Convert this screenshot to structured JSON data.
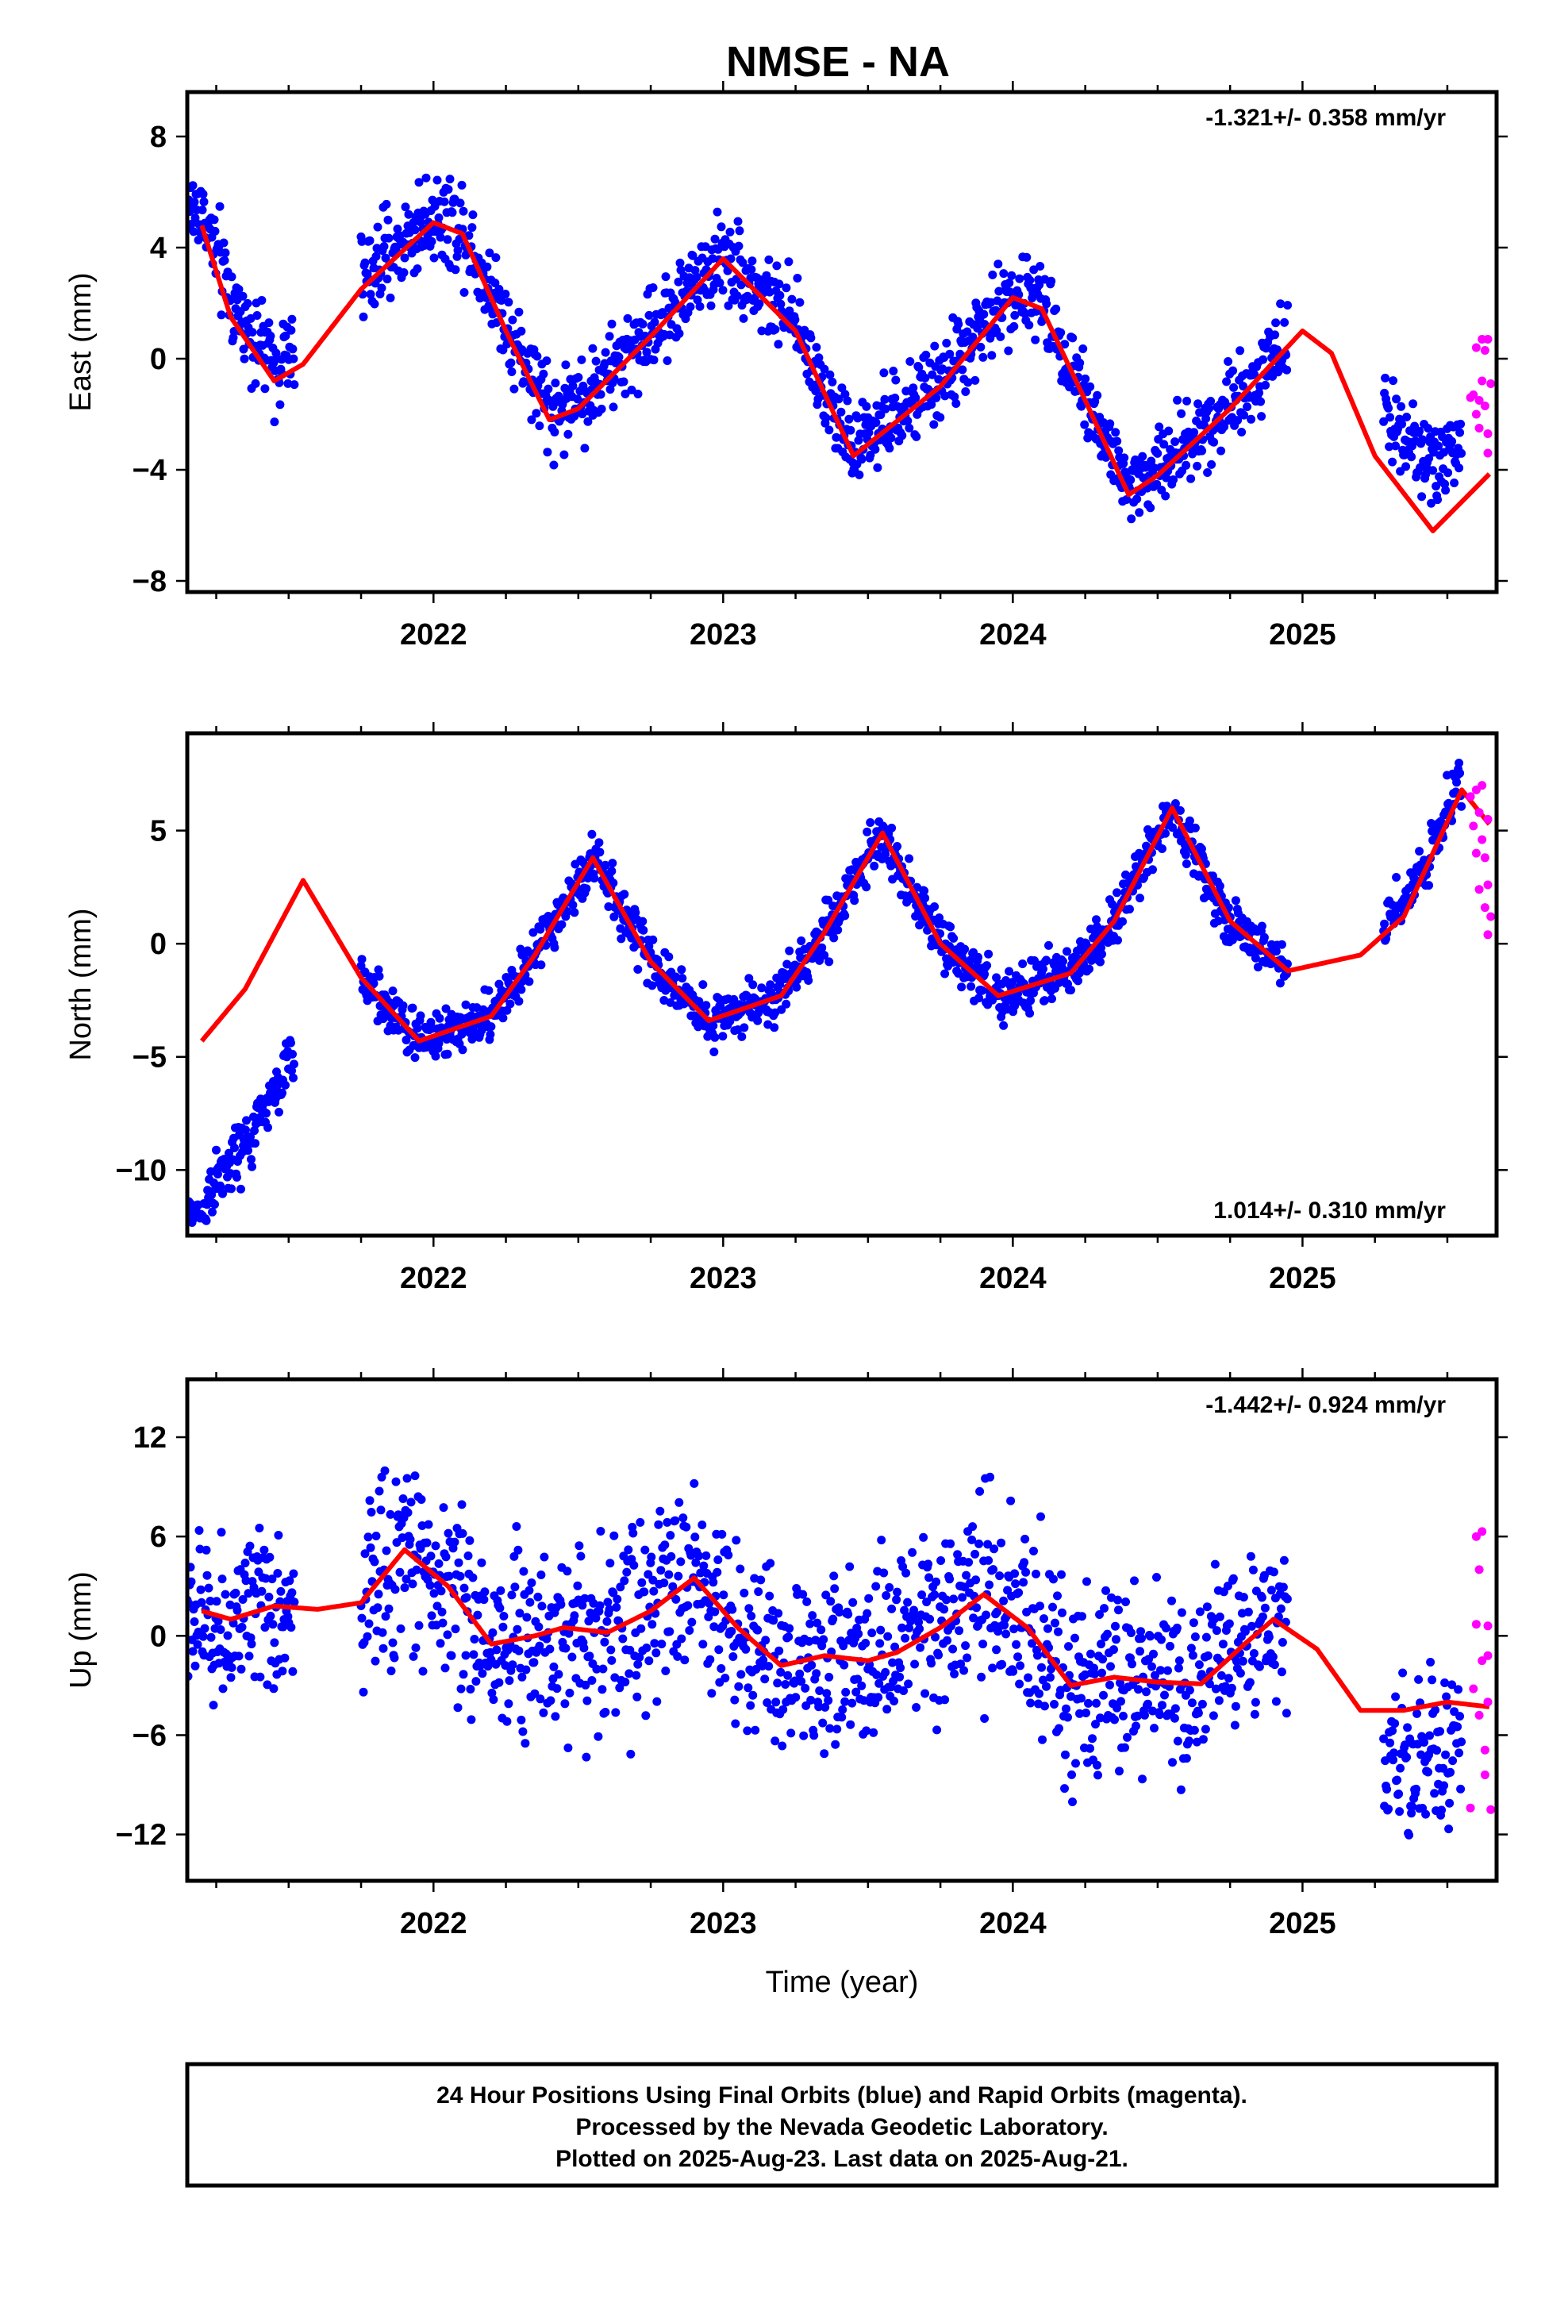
{
  "title": "NMSE - NA",
  "caption": {
    "line1": "24 Hour Positions Using Final Orbits (blue) and Rapid Orbits (magenta).",
    "line2": "Processed by the Nevada Geodetic Laboratory.",
    "line3": "Plotted on 2025-Aug-23. Last data on 2025-Aug-21."
  },
  "colors": {
    "final_orbits": "#0000ff",
    "rapid_orbits": "#ff00ff",
    "model_fit": "#ff0000",
    "axis": "#000000"
  },
  "chart_data": [
    {
      "type": "scatter",
      "name": "east",
      "ylabel": "East (mm)",
      "xlabel": "",
      "rate_label": "-1.321+/- 0.358 mm/yr",
      "rate_position": "top-right",
      "xlim": [
        2021.15,
        2025.67
      ],
      "ylim": [
        -8.4,
        9.6
      ],
      "xticks": [
        2022,
        2023,
        2024,
        2025
      ],
      "xtick_labels": [
        "2022",
        "2023",
        "2024",
        "2025"
      ],
      "yticks": [
        -8,
        -4,
        0,
        4,
        8
      ],
      "ytick_labels": [
        "−8",
        "−4",
        "0",
        "4",
        "8"
      ],
      "grid": false,
      "model": {
        "x": [
          2021.2,
          2021.3,
          2021.45,
          2021.55,
          2021.75,
          2022.0,
          2022.1,
          2022.25,
          2022.4,
          2022.5,
          2022.75,
          2023.0,
          2023.25,
          2023.45,
          2023.75,
          2024.0,
          2024.1,
          2024.25,
          2024.4,
          2024.5,
          2024.75,
          2025.0,
          2025.1,
          2025.25,
          2025.45,
          2025.65
        ],
        "y": [
          4.8,
          1.5,
          -0.8,
          -0.2,
          2.5,
          4.9,
          4.5,
          1.0,
          -2.2,
          -1.8,
          0.8,
          3.6,
          1.0,
          -3.5,
          -1.0,
          2.2,
          1.8,
          -1.5,
          -4.9,
          -4.2,
          -1.8,
          1.0,
          0.2,
          -3.5,
          -6.2,
          -4.1
        ]
      },
      "final_points": {
        "segments": [
          {
            "x0": 2021.15,
            "x1": 2021.52,
            "offset": 0.6,
            "spread": 1.1
          },
          {
            "x0": 2021.75,
            "x1": 2022.55,
            "offset": 0.3,
            "spread": 1.1
          },
          {
            "x0": 2022.55,
            "x1": 2024.95,
            "offset": 0.2,
            "spread": 1.0
          },
          {
            "x0": 2025.28,
            "x1": 2025.55,
            "offset": 2.2,
            "spread": 1.0
          }
        ]
      },
      "rapid_points": {
        "x": [
          2025.58,
          2025.59,
          2025.6,
          2025.6,
          2025.61,
          2025.61,
          2025.62,
          2025.62,
          2025.63,
          2025.63,
          2025.64,
          2025.64,
          2025.64,
          2025.65
        ],
        "y": [
          -1.4,
          -1.3,
          0.4,
          -2.0,
          -1.5,
          -2.5,
          0.7,
          -0.8,
          0.3,
          -1.7,
          -2.7,
          -3.4,
          0.7,
          -0.9
        ]
      }
    },
    {
      "type": "scatter",
      "name": "north",
      "ylabel": "North (mm)",
      "xlabel": "",
      "rate_label": "1.014+/- 0.310 mm/yr",
      "rate_position": "bottom-right",
      "xlim": [
        2021.15,
        2025.67
      ],
      "ylim": [
        -12.9,
        9.3
      ],
      "xticks": [
        2022,
        2023,
        2024,
        2025
      ],
      "xtick_labels": [
        "2022",
        "2023",
        "2024",
        "2025"
      ],
      "yticks": [
        -10,
        -5,
        0,
        5
      ],
      "ytick_labels": [
        "−10",
        "−5",
        "0",
        "5"
      ],
      "grid": false,
      "model": {
        "x": [
          2021.2,
          2021.35,
          2021.55,
          2021.75,
          2021.95,
          2022.2,
          2022.35,
          2022.55,
          2022.75,
          2022.95,
          2023.2,
          2023.35,
          2023.55,
          2023.75,
          2023.95,
          2024.2,
          2024.35,
          2024.55,
          2024.75,
          2024.95,
          2025.2,
          2025.35,
          2025.55,
          2025.65
        ],
        "y": [
          -4.3,
          -2.0,
          2.8,
          -1.5,
          -4.3,
          -3.2,
          -0.5,
          3.8,
          -0.8,
          -3.4,
          -2.3,
          0.5,
          4.9,
          0.0,
          -2.3,
          -1.3,
          1.0,
          6.0,
          1.0,
          -1.2,
          -0.5,
          1.2,
          6.8,
          5.2
        ]
      },
      "final_points": {
        "segments": [
          {
            "x0": 2021.15,
            "x1": 2021.22,
            "offset": -7.6,
            "spread": 0.55
          },
          {
            "x0": 2021.22,
            "x1": 2021.52,
            "offset": -7.0,
            "spread": 0.9
          },
          {
            "x0": 2021.75,
            "x1": 2024.95,
            "offset": 0.0,
            "spread": 0.75
          },
          {
            "x0": 2025.28,
            "x1": 2025.55,
            "offset": 0.5,
            "spread": 0.8
          }
        ]
      },
      "rapid_points": {
        "x": [
          2025.58,
          2025.59,
          2025.6,
          2025.6,
          2025.61,
          2025.61,
          2025.62,
          2025.62,
          2025.63,
          2025.63,
          2025.64,
          2025.64,
          2025.64,
          2025.65
        ],
        "y": [
          6.5,
          5.2,
          6.8,
          4.0,
          5.8,
          2.4,
          7.0,
          4.6,
          1.6,
          3.8,
          0.4,
          2.6,
          5.5,
          1.2
        ]
      }
    },
    {
      "type": "scatter",
      "name": "up",
      "ylabel": "Up (mm)",
      "xlabel": "Time (year)",
      "rate_label": "-1.442+/- 0.924 mm/yr",
      "rate_position": "top-right",
      "xlim": [
        2021.15,
        2025.67
      ],
      "ylim": [
        -14.8,
        15.5
      ],
      "xticks": [
        2022,
        2023,
        2024,
        2025
      ],
      "xtick_labels": [
        "2022",
        "2023",
        "2024",
        "2025"
      ],
      "yticks": [
        -12,
        -6,
        0,
        6,
        12
      ],
      "ytick_labels": [
        "−12",
        "−6",
        "0",
        "6",
        "12"
      ],
      "grid": false,
      "model": {
        "x": [
          2021.2,
          2021.3,
          2021.45,
          2021.6,
          2021.75,
          2021.9,
          2022.05,
          2022.2,
          2022.35,
          2022.45,
          2022.6,
          2022.75,
          2022.9,
          2023.05,
          2023.2,
          2023.35,
          2023.5,
          2023.6,
          2023.75,
          2023.9,
          2024.05,
          2024.2,
          2024.35,
          2024.5,
          2024.65,
          2024.8,
          2024.9,
          2025.05,
          2025.2,
          2025.35,
          2025.5,
          2025.65
        ],
        "y": [
          1.5,
          1.0,
          1.8,
          1.6,
          2.0,
          5.2,
          3.0,
          -0.5,
          0.0,
          0.5,
          0.2,
          1.5,
          3.5,
          0.5,
          -1.8,
          -1.2,
          -1.5,
          -1.0,
          0.5,
          2.5,
          0.5,
          -3.0,
          -2.5,
          -2.8,
          -2.9,
          -0.5,
          1.0,
          -0.8,
          -4.5,
          -4.5,
          -4.0,
          -4.3
        ]
      },
      "final_points": {
        "segments": [
          {
            "x0": 2021.15,
            "x1": 2021.52,
            "offset": -0.5,
            "spread": 3.5
          },
          {
            "x0": 2021.75,
            "x1": 2024.95,
            "offset": 0.0,
            "spread": 3.8
          },
          {
            "x0": 2025.28,
            "x1": 2025.55,
            "offset": -3.0,
            "spread": 3.2
          }
        ]
      },
      "rapid_points": {
        "x": [
          2025.58,
          2025.59,
          2025.6,
          2025.6,
          2025.61,
          2025.61,
          2025.62,
          2025.62,
          2025.63,
          2025.63,
          2025.64,
          2025.64,
          2025.64,
          2025.65
        ],
        "y": [
          -10.4,
          -3.2,
          6.0,
          0.7,
          -4.8,
          4.0,
          6.3,
          -1.5,
          -8.4,
          -6.9,
          0.6,
          -4.0,
          -1.2,
          -10.5
        ]
      }
    }
  ]
}
